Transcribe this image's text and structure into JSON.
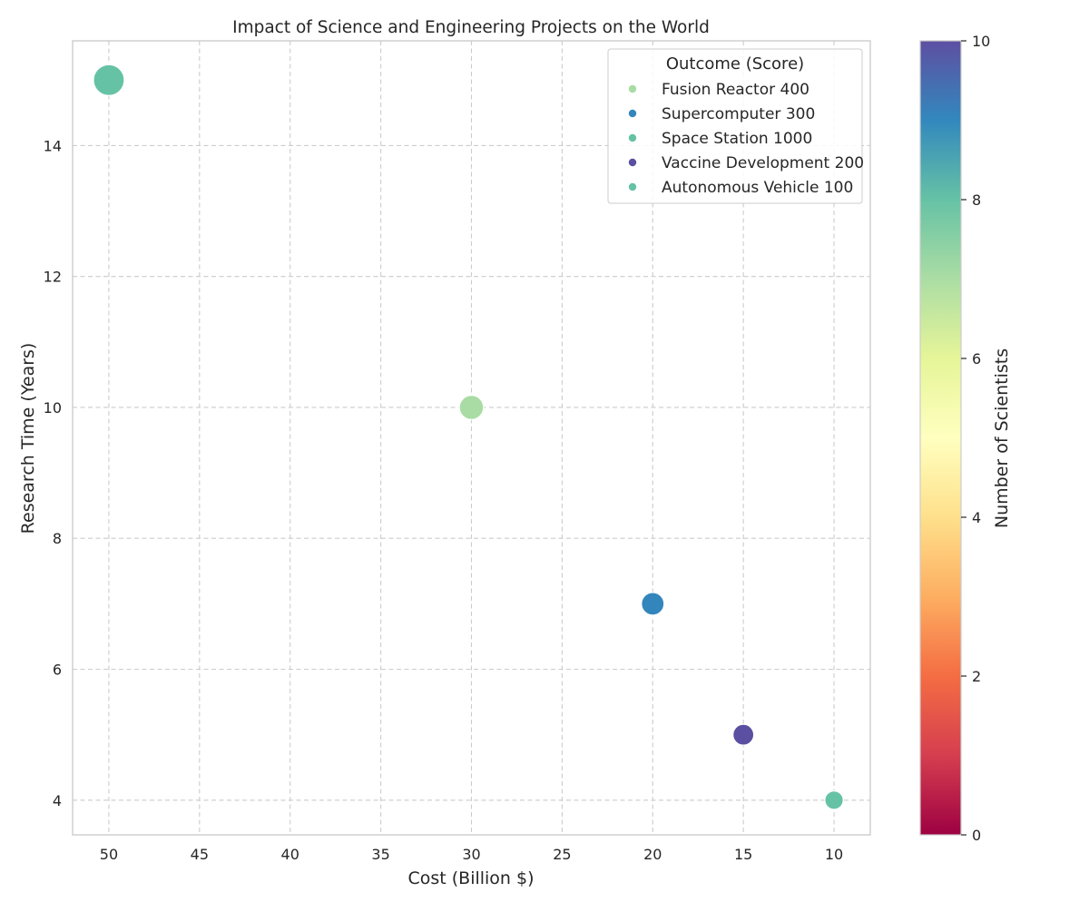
{
  "chart_data": {
    "type": "scatter",
    "title": "Impact of Science and Engineering Projects on the World",
    "xlabel": "Cost (Billion $)",
    "ylabel": "Research Time (Years)",
    "x_axis_inverted": true,
    "xlim": [
      52,
      8
    ],
    "ylim": [
      3.47,
      15.6
    ],
    "xticks": [
      50,
      45,
      40,
      35,
      30,
      25,
      20,
      15,
      10
    ],
    "yticks": [
      4,
      6,
      8,
      10,
      12,
      14
    ],
    "grid": true,
    "legend": {
      "title": "Outcome (Score)",
      "placement": "top-right",
      "entries": [
        {
          "label": "Fusion Reactor 400",
          "color": "#a8dca4"
        },
        {
          "label": "Supercomputer 300",
          "color": "#3286bc"
        },
        {
          "label": "Space Station 1000",
          "color": "#66c2a5"
        },
        {
          "label": "Vaccine Development 200",
          "color": "#5a4fa1"
        },
        {
          "label": "Autonomous Vehicle 100",
          "color": "#66c2a5"
        }
      ]
    },
    "points": [
      {
        "project": "Space Station",
        "cost": 50,
        "years": 15,
        "scientists": 8,
        "score": 1000,
        "color": "#66c2a5"
      },
      {
        "project": "Fusion Reactor",
        "cost": 30,
        "years": 10,
        "scientists": 7,
        "score": 400,
        "color": "#a8dca4"
      },
      {
        "project": "Supercomputer",
        "cost": 20,
        "years": 7,
        "scientists": 9,
        "score": 300,
        "color": "#3286bc"
      },
      {
        "project": "Vaccine Development",
        "cost": 15,
        "years": 5,
        "scientists": 10,
        "score": 200,
        "color": "#5a4fa1"
      },
      {
        "project": "Autonomous Vehicle",
        "cost": 10,
        "years": 4,
        "scientists": 8,
        "score": 100,
        "color": "#66c2a5"
      }
    ],
    "colorbar": {
      "label": "Number of Scientists",
      "range": [
        0,
        10
      ],
      "ticks": [
        0,
        2,
        4,
        6,
        8,
        10
      ],
      "colormap": "Spectral",
      "stops": [
        "#9e0142",
        "#d53e4f",
        "#f46d43",
        "#fdae61",
        "#fee08b",
        "#ffffbf",
        "#e6f598",
        "#abdda4",
        "#66c2a5",
        "#3288bd",
        "#5e4fa2"
      ]
    }
  }
}
